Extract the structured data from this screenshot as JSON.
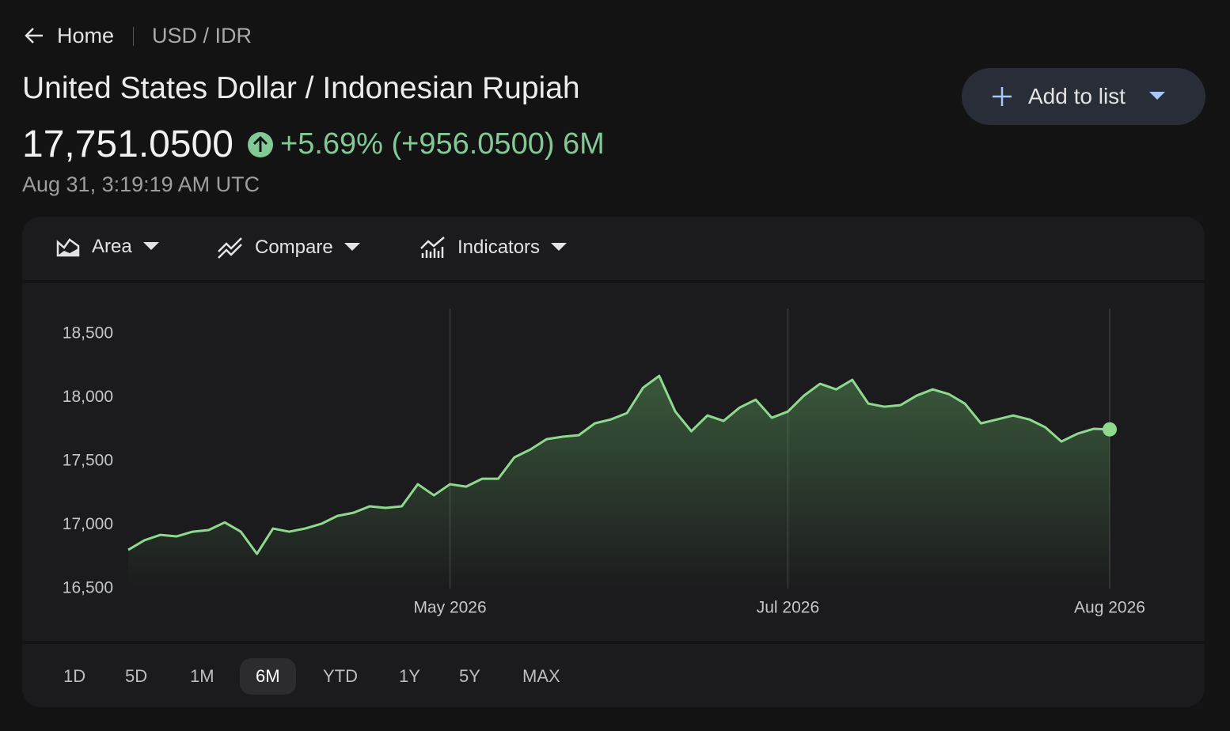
{
  "nav": {
    "home": "Home",
    "pair": "USD / IDR"
  },
  "header": {
    "title": "United States Dollar / Indonesian Rupiah",
    "price": "17,751.0500",
    "change": "+5.69% (+956.0500) 6M",
    "timestamp": "Aug 31, 3:19:19 AM UTC"
  },
  "button": "Add to list",
  "toolbar": [
    "Area",
    "Compare",
    "Indicators"
  ],
  "ranges": [
    "1D",
    "5D",
    "1M",
    "6M",
    "YTD",
    "1Y",
    "5Y",
    "MAX"
  ],
  "chart_data": {
    "type": "area",
    "color": "#8fd98f",
    "categories": [
      null,
      null,
      null,
      null,
      null,
      null,
      null,
      null,
      null,
      null,
      null,
      null,
      null,
      null,
      null,
      null,
      null,
      null,
      null,
      null,
      "May 2026",
      null,
      null,
      null,
      null,
      null,
      null,
      null,
      null,
      null,
      null,
      null,
      null,
      null,
      null,
      null,
      null,
      null,
      null,
      null,
      null,
      "Jul 2026",
      null,
      null,
      null,
      null,
      null,
      null,
      null,
      null,
      null,
      null,
      null,
      null,
      null,
      null,
      null,
      null,
      null,
      null,
      null,
      "Aug 2026"
    ],
    "values": [
      16804,
      16879,
      16922,
      16910,
      16947,
      16960,
      17020,
      16947,
      16773,
      16972,
      16947,
      16972,
      17009,
      17071,
      17096,
      17146,
      17134,
      17146,
      17320,
      17233,
      17320,
      17301,
      17363,
      17363,
      17531,
      17593,
      17674,
      17693,
      17705,
      17798,
      17829,
      17879,
      18078,
      18171,
      17891,
      17736,
      17860,
      17817,
      17922,
      17984,
      17842,
      17891,
      18016,
      18109,
      18065,
      18140,
      17953,
      17929,
      17941,
      18016,
      18065,
      18028,
      17953,
      17798,
      17829,
      17860,
      17829,
      17767,
      17655,
      17717,
      17755,
      17751
    ],
    "ylim": [
      16500,
      18700
    ],
    "yticks": [
      {
        "value": 16500,
        "label": "16,500"
      },
      {
        "value": 17000,
        "label": "17,000"
      },
      {
        "value": 17500,
        "label": "17,500"
      },
      {
        "value": 18000,
        "label": "18,000"
      },
      {
        "value": 18500,
        "label": "18,500"
      }
    ]
  }
}
